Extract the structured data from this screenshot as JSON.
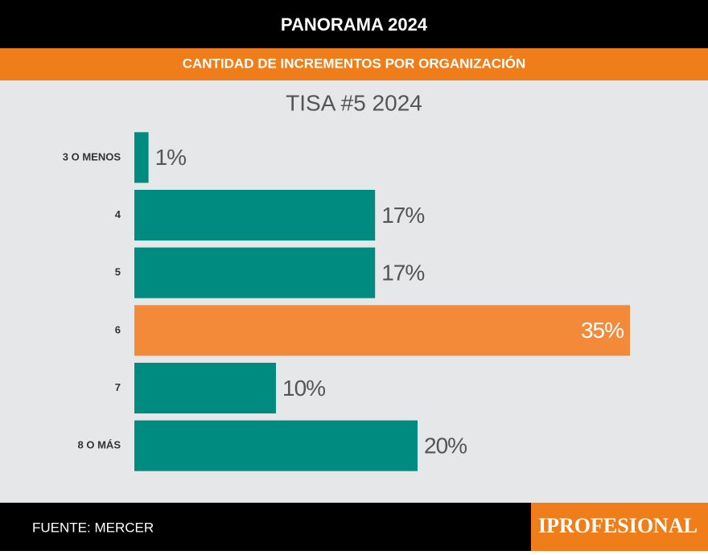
{
  "header": {
    "title": "PANORAMA 2024",
    "subtitle": "CANTIDAD DE INCREMENTOS POR ORGANIZACIÓN"
  },
  "chart_data": {
    "type": "hbar",
    "title": "TISA #5 2024",
    "categories": [
      "3 O MENOS",
      "4",
      "5",
      "6",
      "7",
      "8 O MÁS"
    ],
    "values": [
      1,
      17,
      17,
      35,
      10,
      20
    ],
    "value_labels": [
      "1%",
      "17%",
      "17%",
      "35%",
      "10%",
      "20%"
    ],
    "colors": [
      "#008b80",
      "#008b80",
      "#008b80",
      "#f28a3a",
      "#008b80",
      "#008b80"
    ]
  },
  "footer": {
    "source": "FUENTE: MERCER",
    "logo": "IPROFESIONAL"
  }
}
